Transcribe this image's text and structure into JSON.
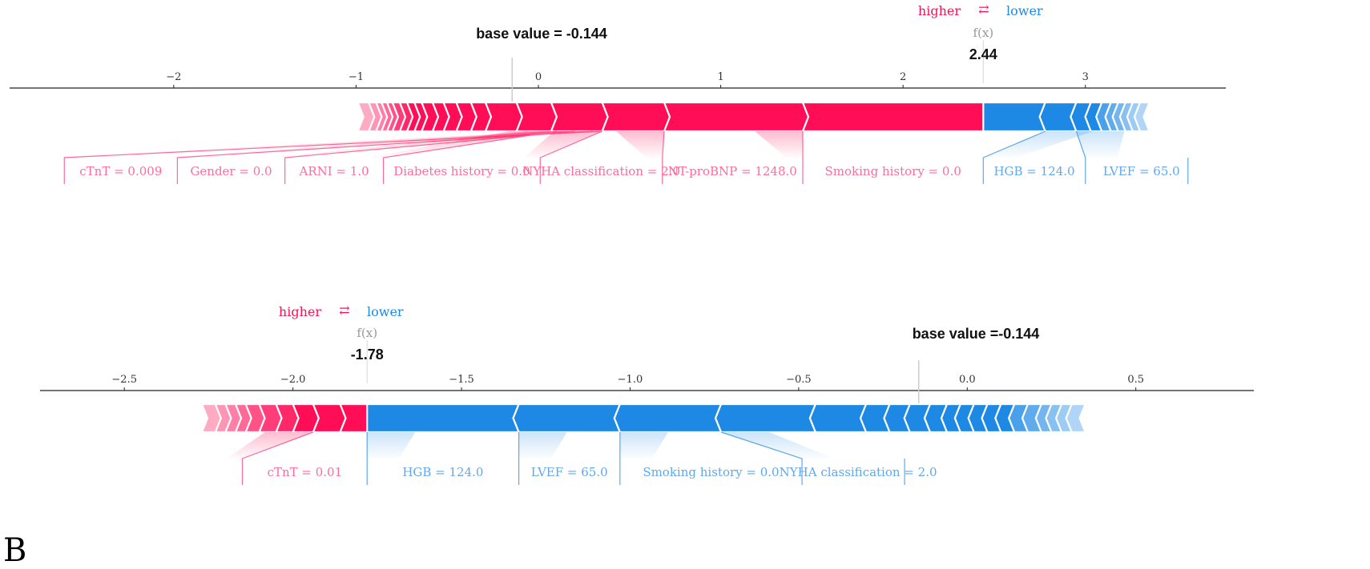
{
  "panel_letter": "B",
  "chart_data": [
    {
      "type": "force",
      "legend": {
        "higher": "higher",
        "lower": "lower",
        "arrow": "⇄"
      },
      "fx_label": "f(x)",
      "fx_value": 2.44,
      "fx_text": "2.44",
      "base_value": -0.144,
      "base_text": "base value = -0.144",
      "xlim": [
        -2.9,
        3.77
      ],
      "ticks": [
        -2,
        -1,
        0,
        1,
        2,
        3
      ],
      "tick_labels": [
        "−2",
        "−1",
        "0",
        "1",
        "2",
        "3"
      ],
      "bar_start": -0.99,
      "bar_end": 3.35,
      "boundaries": [
        -0.99,
        -0.93,
        -0.89,
        -0.86,
        -0.83,
        -0.8,
        -0.76,
        -0.72,
        -0.68,
        -0.64,
        -0.58,
        -0.52,
        -0.45,
        -0.37,
        -0.29,
        -0.12,
        0.07,
        0.35,
        0.69,
        1.45,
        2.44,
        2.78,
        2.95,
        3.03,
        3.09,
        3.14,
        3.18,
        3.22,
        3.26,
        3.3,
        3.35
      ],
      "labels": [
        {
          "text": "cTnT = 0.009",
          "side": "higher",
          "from": 0.35,
          "to": 0.35,
          "x": -2.6
        },
        {
          "text": "Gender = 0.0",
          "side": "higher",
          "from": 0.3,
          "to": 0.3,
          "x": -1.98
        },
        {
          "text": "ARNI = 1.0",
          "side": "higher",
          "from": 0.2,
          "to": 0.2,
          "x": -1.39
        },
        {
          "text": "Diabetes history = 0.0",
          "side": "higher",
          "from": 0.1,
          "to": 0.1,
          "x": -0.85
        },
        {
          "text": "NYHA classification = 2.0",
          "side": "higher",
          "from": 0.35,
          "to": 0.35,
          "x": 0.01
        },
        {
          "text": "NT-proBNP = 1248.0",
          "side": "higher",
          "from": 0.69,
          "to": 0.69,
          "x": 0.68
        },
        {
          "text": "Smoking history = 0.0",
          "side": "higher",
          "from": 1.45,
          "to": 1.45,
          "x": 1.45
        },
        {
          "text": "HGB = 124.0",
          "side": "lower",
          "from": 2.78,
          "to": 2.78,
          "x": 2.44
        },
        {
          "text": "LVEF = 65.0",
          "side": "lower",
          "from": 2.95,
          "to": 2.95,
          "x": 3.0
        }
      ]
    },
    {
      "type": "force",
      "legend": {
        "higher": "higher",
        "lower": "lower",
        "arrow": "⇄"
      },
      "fx_label": "f(x)",
      "fx_value": -1.78,
      "fx_text": "-1.78",
      "base_value": -0.144,
      "base_text": "base value =-0.144",
      "xlim": [
        -2.75,
        0.85
      ],
      "ticks": [
        -2.5,
        -2.0,
        -1.5,
        -1.0,
        -0.5,
        0.0,
        0.5
      ],
      "tick_labels": [
        "−2.5",
        "−2.0",
        "−1.5",
        "−1.0",
        "−0.5",
        "0.0",
        "0.5"
      ],
      "bar_start": -2.27,
      "bar_end": 0.35,
      "boundaries": [
        -2.27,
        -2.23,
        -2.2,
        -2.17,
        -2.14,
        -2.1,
        -2.05,
        -2.0,
        -1.94,
        -1.86,
        -1.78,
        -1.33,
        -1.03,
        -0.73,
        -0.45,
        -0.3,
        -0.23,
        -0.17,
        -0.11,
        -0.06,
        -0.02,
        0.02,
        0.06,
        0.1,
        0.14,
        0.18,
        0.22,
        0.25,
        0.28,
        0.31,
        0.35
      ],
      "labels": [
        {
          "text": "cTnT = 0.01",
          "side": "higher",
          "from": -1.94,
          "to": -1.94,
          "x": -2.15
        },
        {
          "text": "HGB = 124.0",
          "side": "lower",
          "from": -1.78,
          "to": -1.78,
          "x": -1.78
        },
        {
          "text": "LVEF = 65.0",
          "side": "lower",
          "from": -1.33,
          "to": -1.33,
          "x": -1.33
        },
        {
          "text": "Smoking history = 0.0",
          "side": "lower",
          "from": -1.03,
          "to": -1.03,
          "x": -1.03
        },
        {
          "text": "NYHA classification = 2.0",
          "side": "lower",
          "from": -0.73,
          "to": -0.73,
          "x": -0.49
        }
      ]
    }
  ]
}
